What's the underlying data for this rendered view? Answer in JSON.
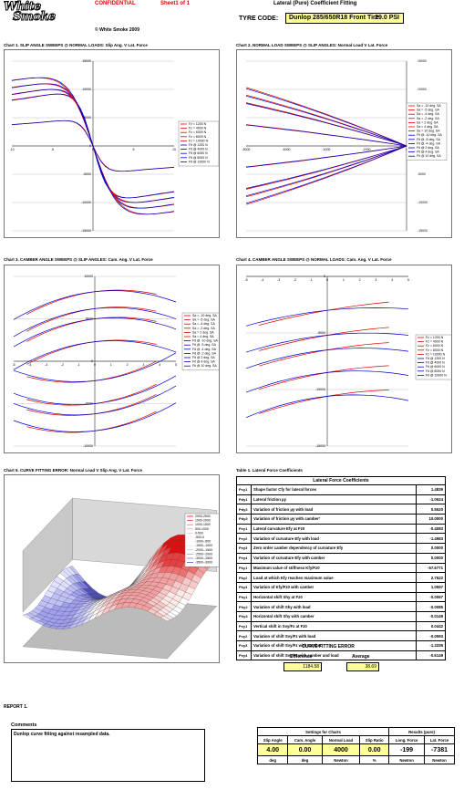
{
  "header": {
    "logo_line1": "White",
    "logo_line2": "Smoke",
    "confidential": "CONFIDENTIAL",
    "sheet": "Sheet1 of 1",
    "title": "Lateral (Pure) Coefficient Fitting",
    "copyright": "© White Smoke 2009",
    "tyre_label": "TYRE CODE:",
    "tyre_code": "Dunlop 285/650R18  Front Tire",
    "pressure": "29.0  PSI"
  },
  "chart_titles": {
    "c1": "Chart 1. SLIP ANGLE SWEEPS @ NORMAL LOADS: Slip Ang. V Lat. Force",
    "c2": "Chart 2. NORMAL LOAD SWEEPS @ SLIP ANGLES: Normal Load V Lat. Force",
    "c3": "Chart 3. CAMBER ANGLE SWEEPS @ SLIP ANGLES: Cam. Ang. V Lat. Force",
    "c4": "Chart 4. CAMBER ANGLE SWEEPS @ NORMAL LOADS: Cam. Ang. V Lat. Force",
    "c5": "Chart 5. CURVE FITTING ERROR: Normal Load V Slip Ang. V Lat. Force",
    "table1": "Table 1. Lateral Force Coefficients"
  },
  "chart_data": [
    {
      "id": "chart1",
      "type": "line",
      "xlim": [
        -10,
        10
      ],
      "ylim": [
        -15000,
        15000
      ],
      "xticks": [
        "-10",
        "-5",
        "0",
        "5",
        "10"
      ],
      "yticks": [
        "15000",
        "10000",
        "5000",
        "0",
        "-5000",
        "-10000",
        "-15000"
      ],
      "legend": [
        "Fz = 1200 N",
        "Fz = 4000 N",
        "Fz = 6000 N",
        "Fz = 8000 N",
        "Fz = 10000 N",
        "Fit @ 1200 N",
        "Fit @ 4000 N",
        "Fit @ 6000 N",
        "Fit @ 8000 N",
        "Fit @ 10000 N"
      ],
      "legend_colors": [
        "#e00000",
        "#e00000",
        "#e00000",
        "#e00000",
        "#e00000",
        "#0000cc",
        "#0000cc",
        "#0000cc",
        "#0000cc",
        "#0000cc"
      ],
      "series_peaks": [
        4500,
        9300,
        10200,
        11300,
        12500
      ],
      "x": [
        -10,
        -8,
        -6,
        -4,
        -3,
        -2,
        -1,
        0,
        1,
        2,
        3,
        4,
        6,
        8,
        10
      ]
    },
    {
      "id": "chart2",
      "type": "line",
      "xlim": [
        -8000,
        0
      ],
      "ylim": [
        -15000,
        15000
      ],
      "xticks": [
        "-8000",
        "-6000",
        "-4000",
        "-2000",
        "0"
      ],
      "yticks": [
        "15000",
        "10000",
        "5000",
        "0",
        "-5000",
        "-10000",
        "-15000"
      ],
      "legend": [
        "Sa = -10 deg. SA",
        "Sa = -5 deg. SA",
        "Sa = -4 deg. SA",
        "Sa = -2 deg. SA",
        "Sa = 2 deg. SA",
        "Sa = 4 deg. SA",
        "Sa = 10 deg. SA",
        "Fit @ -10 deg. SA",
        "Fit @ -5 deg. SA",
        "Fit @ -4 deg. SA",
        "Fit @ 2 deg. SA",
        "Fit @ 4 deg. SA",
        "Fit @ 10 deg. SA"
      ],
      "legend_colors": [
        "#e00000",
        "#e00000",
        "#e00000",
        "#e00000",
        "#e00000",
        "#e00000",
        "#e00000",
        "#0000cc",
        "#0000cc",
        "#0000cc",
        "#0000cc",
        "#0000cc",
        "#0000cc"
      ],
      "endpoints": [
        11500,
        10000,
        8500,
        4200,
        -4200,
        -8500,
        -10000,
        -11500
      ]
    },
    {
      "id": "chart3",
      "type": "line",
      "xlim": [
        -5,
        5
      ],
      "ylim": [
        -10000,
        10000
      ],
      "xticks": [
        "-5",
        "-4",
        "-3",
        "-2",
        "-1",
        "0",
        "1",
        "2",
        "3",
        "4",
        "5"
      ],
      "yticks": [
        "10000",
        "5000",
        "0",
        "-5000",
        "-10000"
      ],
      "legend": [
        "Sa = -10 deg. SA",
        "Sa = -5 deg. SA",
        "Sa = -4 deg. SA",
        "Sa = -2 deg. SA",
        "Sa = 2 deg. SA",
        "Sa = 4 deg. SA",
        "Fit @ -10 deg. SA",
        "Fit @ -5 deg. SA",
        "Fit @ -4 deg. SA",
        "Fit @ -2 deg. SA",
        "Fit @ 2 deg. SA",
        "Fit @ 4 deg. SA",
        "Fit @ 10 deg. SA"
      ],
      "legend_colors": [
        "#e00000",
        "#e00000",
        "#e00000",
        "#e00000",
        "#e00000",
        "#e00000",
        "#0000cc",
        "#0000cc",
        "#0000cc",
        "#0000cc",
        "#0000cc",
        "#0000cc",
        "#0000cc"
      ],
      "levels": [
        8200,
        6200,
        5000,
        2300,
        -2300,
        -5000,
        -6200,
        -8200
      ]
    },
    {
      "id": "chart4",
      "type": "line",
      "xlim": [
        -5,
        5
      ],
      "ylim": [
        -15000,
        0
      ],
      "xticks": [
        "-5",
        "-4",
        "-3",
        "-2",
        "-1",
        "0",
        "1",
        "2",
        "3",
        "4",
        "5"
      ],
      "yticks": [
        "0",
        "-5000",
        "-10000",
        "-15000"
      ],
      "legend": [
        "Fz = 1200 N",
        "Fz = 4000 N",
        "Fz = 6000 N",
        "Fz = 8000 N",
        "Fz = 10000 N",
        "Fit @ 1200 N",
        "Fit @ 4000 N",
        "Fit @ 6000 N",
        "Fit @ 8000 N",
        "Fit @ 10000 N"
      ],
      "legend_colors": [
        "#e00000",
        "#e00000",
        "#e00000",
        "#e00000",
        "#e00000",
        "#0000cc",
        "#0000cc",
        "#0000cc",
        "#0000cc",
        "#0000cc"
      ],
      "levels": [
        -3000,
        -5200,
        -6500,
        -8500,
        -10600
      ]
    },
    {
      "id": "chart5",
      "type": "heatmap",
      "legend": [
        "2000-2500",
        "1500-2000",
        "1000-1500",
        "500-1000",
        "0-500",
        "-500-0",
        "-1000--500",
        "-1500--1000",
        "-2000--1500",
        "-2500--2000",
        "-3000--2500",
        "-3500--3000"
      ],
      "legend_colors": [
        "#e01010",
        "#e84040",
        "#f07070",
        "#f5a0a0",
        "#f8c8c8",
        "#ffe8e8",
        "#ffffff",
        "#e0e0ff",
        "#c0c0f8",
        "#a0a0f0",
        "#8080e0",
        "#5050c0"
      ]
    }
  ],
  "coefficients": {
    "header": "Lateral Force Coefficients",
    "rows": [
      {
        "sym": "Pcy1",
        "desc": "Shape factor Cfy for lateral forces",
        "val": "1.4839"
      },
      {
        "sym": "Pdy1",
        "desc": "Lateral friction μy",
        "val": "-1.0524"
      },
      {
        "sym": "Pdy2",
        "desc": "Variation of friction μy with load",
        "val": "0.5520"
      },
      {
        "sym": "Pdy3",
        "desc": "Variation of friction μy with camber²",
        "val": "10.0000"
      },
      {
        "sym": "Pey1",
        "desc": "Lateral curvature Efy at Fz0",
        "val": "-0.4083"
      },
      {
        "sym": "Pey2",
        "desc": "Variation of curvature Efy with load",
        "val": "-1.4983"
      },
      {
        "sym": "Pey3",
        "desc": "Zero order camber dependency of curvature Efy",
        "val": "0.0000"
      },
      {
        "sym": "Pey4",
        "desc": "Variation of curvature Efy with camber",
        "val": "0.0000"
      },
      {
        "sym": "Pky1",
        "desc": "Maximum value of stiffness Kfy/Fz0",
        "val": "-57.6771"
      },
      {
        "sym": "Pky2",
        "desc": "Load at which Kfy reaches maximum value",
        "val": "2.7622"
      },
      {
        "sym": "Pky3",
        "desc": "Variation of Kfy/Fz0 with camber",
        "val": "1.0557"
      },
      {
        "sym": "Phy1",
        "desc": "Horizontal shift Shy at Fz0",
        "val": "-0.0067"
      },
      {
        "sym": "Phy2",
        "desc": "Variation of shift Shy with load",
        "val": "-0.0085"
      },
      {
        "sym": "Phy3",
        "desc": "Horizontal shift Shy with camber",
        "val": "-0.0149"
      },
      {
        "sym": "Pvy1",
        "desc": "Vertical shift in Svy/Fz at Fz0",
        "val": "0.0442"
      },
      {
        "sym": "Pvy2",
        "desc": "Variation of shift Svy/Fz with load",
        "val": "-0.0593"
      },
      {
        "sym": "Pvy3",
        "desc": "Variation of shift Svy/Fz with camber",
        "val": "-1.3336"
      },
      {
        "sym": "Pvy4",
        "desc": "Variation of shift Svy/Fz with camber and load",
        "val": "-0.6149"
      }
    ]
  },
  "fitting_error": {
    "title": "CURVE FITTING ERROR",
    "difference_label": "Difference",
    "average_label": "Average",
    "difference": "1184.58",
    "average": "38.69"
  },
  "report_label": "REPORT 1.",
  "comments": {
    "label": "Comments",
    "text": "Dunlop curve fitting against resampled data."
  },
  "settings": {
    "title": "Settings for Charts",
    "results_title": "Results (pure)",
    "headers": [
      "Slip Angle",
      "Cam. Angle",
      "Normal Load",
      "Slip Ratio",
      "Long. Force",
      "Lat. Force"
    ],
    "values": [
      "4.00",
      "0.00",
      "4000",
      "0.00",
      "-199",
      "-7381"
    ],
    "units": [
      "deg",
      "deg",
      "Newton",
      "%",
      "Newton",
      "Newton"
    ]
  }
}
